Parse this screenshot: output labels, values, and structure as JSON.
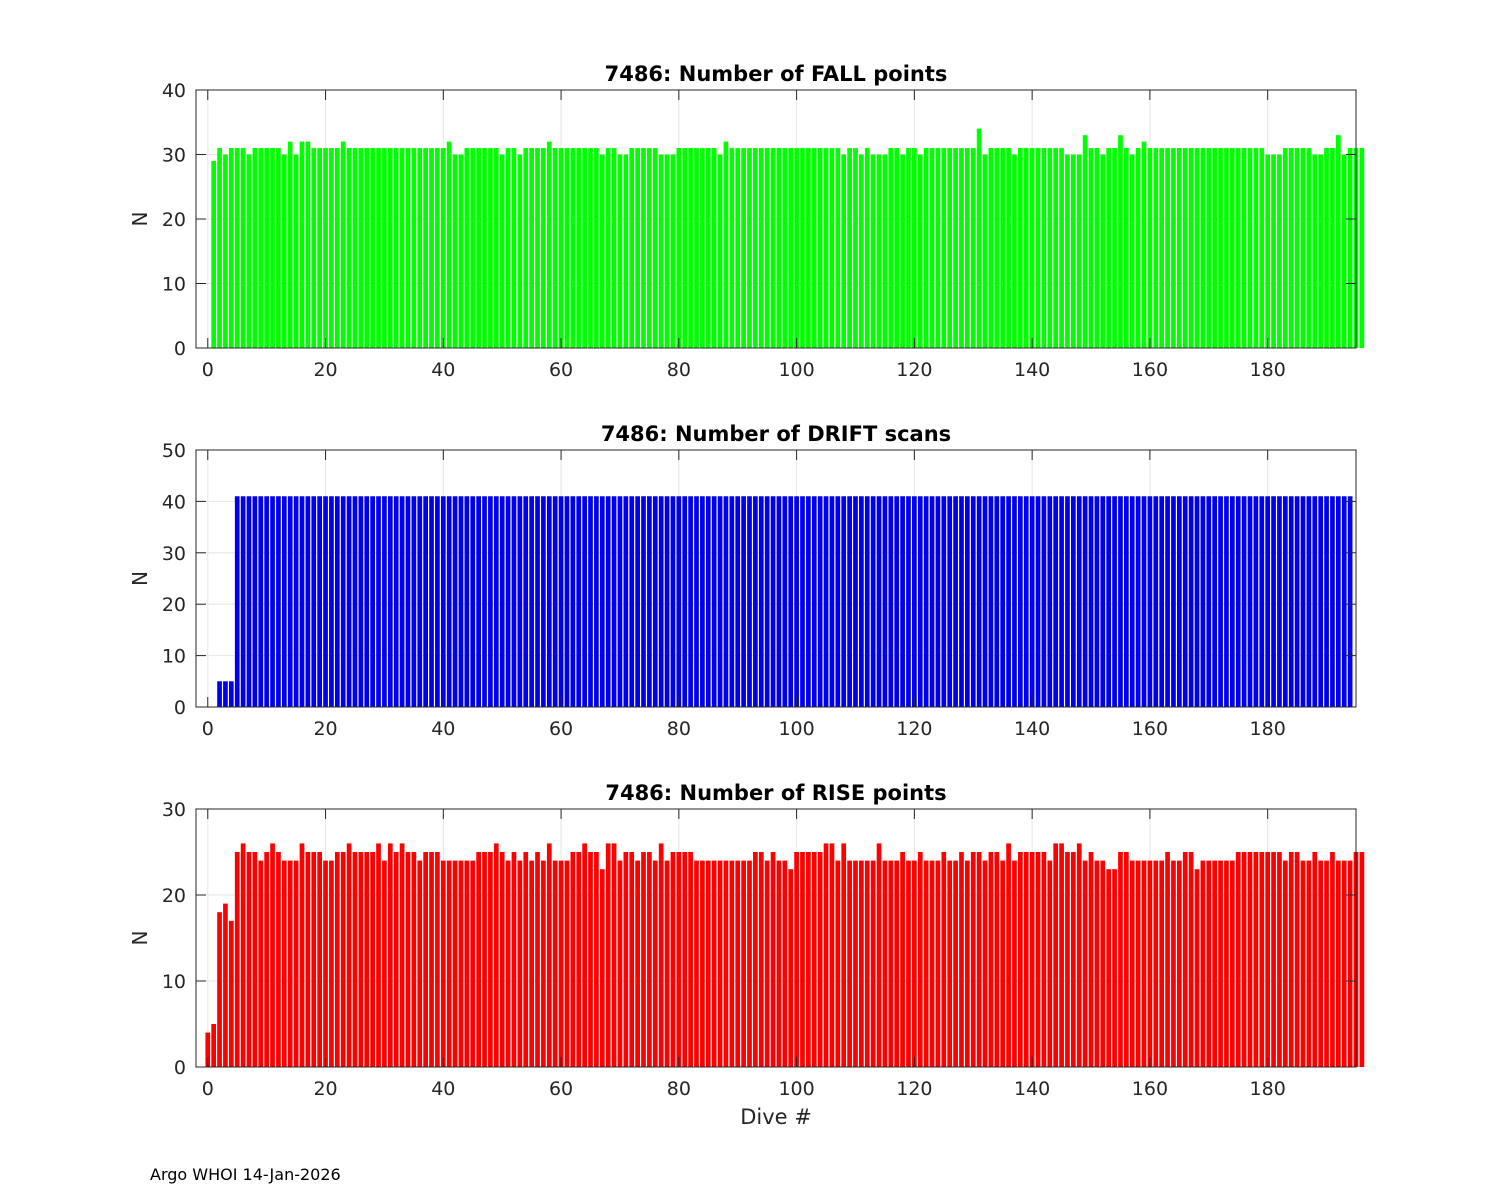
{
  "footer": "Argo WHOI 14-Jan-2026",
  "chart_data": [
    {
      "type": "bar",
      "title": "7486: Number of FALL points",
      "ylabel": "N",
      "xlabel": "",
      "xlim": [
        -2,
        195
      ],
      "ylim": [
        0,
        40
      ],
      "xticks": [
        0,
        20,
        40,
        60,
        80,
        100,
        120,
        140,
        160,
        180
      ],
      "yticks": [
        0,
        10,
        20,
        30,
        40
      ],
      "color": "#00ff00",
      "x_start": 1,
      "values": [
        29,
        31,
        30,
        31,
        31,
        31,
        30,
        31,
        31,
        31,
        31,
        31,
        30,
        32,
        30,
        32,
        32,
        31,
        31,
        31,
        31,
        31,
        32,
        31,
        31,
        31,
        31,
        31,
        31,
        31,
        31,
        31,
        31,
        31,
        31,
        31,
        31,
        31,
        31,
        31,
        32,
        30,
        30,
        31,
        31,
        31,
        31,
        31,
        31,
        30,
        31,
        31,
        30,
        31,
        31,
        31,
        31,
        32,
        31,
        31,
        31,
        31,
        31,
        31,
        31,
        31,
        30,
        31,
        31,
        30,
        30,
        31,
        31,
        31,
        31,
        31,
        30,
        30,
        30,
        31,
        31,
        31,
        31,
        31,
        31,
        31,
        30,
        32,
        31,
        31,
        31,
        31,
        31,
        31,
        31,
        31,
        31,
        31,
        31,
        31,
        31,
        31,
        31,
        31,
        31,
        31,
        31,
        30,
        31,
        31,
        30,
        31,
        30,
        30,
        30,
        31,
        31,
        30,
        31,
        31,
        30,
        31,
        31,
        31,
        31,
        31,
        31,
        31,
        31,
        31,
        34,
        30,
        31,
        31,
        31,
        31,
        30,
        31,
        31,
        31,
        31,
        31,
        31,
        31,
        31,
        30,
        30,
        30,
        33,
        31,
        31,
        30,
        31,
        31,
        33,
        31,
        30,
        31,
        32,
        31,
        31,
        31,
        31,
        31,
        31,
        31,
        31,
        31,
        31,
        31,
        31,
        31,
        31,
        31,
        31,
        31,
        31,
        31,
        31,
        30,
        30,
        30,
        31,
        31,
        31,
        31,
        31,
        30,
        30,
        31,
        31,
        33,
        30,
        31,
        31,
        31
      ]
    },
    {
      "type": "bar",
      "title": "7486: Number of DRIFT scans",
      "ylabel": "N",
      "xlabel": "",
      "xlim": [
        -2,
        195
      ],
      "ylim": [
        0,
        50
      ],
      "xticks": [
        0,
        20,
        40,
        60,
        80,
        100,
        120,
        140,
        160,
        180
      ],
      "yticks": [
        0,
        10,
        20,
        30,
        40,
        50
      ],
      "color": "#0000ee",
      "x_start": 2,
      "values": [
        5,
        5,
        5,
        41,
        41,
        41,
        41,
        41,
        41,
        41,
        41,
        41,
        41,
        41,
        41,
        41,
        41,
        41,
        41,
        41,
        41,
        41,
        41,
        41,
        41,
        41,
        41,
        41,
        41,
        41,
        41,
        41,
        41,
        41,
        41,
        41,
        41,
        41,
        41,
        41,
        41,
        41,
        41,
        41,
        41,
        41,
        41,
        41,
        41,
        41,
        41,
        41,
        41,
        41,
        41,
        41,
        41,
        41,
        41,
        41,
        41,
        41,
        41,
        41,
        41,
        41,
        41,
        41,
        41,
        41,
        41,
        41,
        41,
        41,
        41,
        41,
        41,
        41,
        41,
        41,
        41,
        41,
        41,
        41,
        41,
        41,
        41,
        41,
        41,
        41,
        41,
        41,
        41,
        41,
        41,
        41,
        41,
        41,
        41,
        41,
        41,
        41,
        41,
        41,
        41,
        41,
        41,
        41,
        41,
        41,
        41,
        41,
        41,
        41,
        41,
        41,
        41,
        41,
        41,
        41,
        41,
        41,
        41,
        41,
        41,
        41,
        41,
        41,
        41,
        41,
        41,
        41,
        41,
        41,
        41,
        41,
        41,
        41,
        41,
        41,
        41,
        41,
        41,
        41,
        41,
        41,
        41,
        41,
        41,
        41,
        41,
        41,
        41,
        41,
        41,
        41,
        41,
        41,
        41,
        41,
        41,
        41,
        41,
        41,
        41,
        41,
        41,
        41,
        41,
        41,
        41,
        41,
        41,
        41,
        41,
        41,
        41,
        41,
        41,
        41,
        41,
        41,
        41,
        41,
        41,
        41,
        41,
        41,
        41,
        41,
        41,
        41,
        41
      ]
    },
    {
      "type": "bar",
      "title": "7486: Number of RISE points",
      "ylabel": "N",
      "xlabel": "Dive #",
      "xlim": [
        -2,
        195
      ],
      "ylim": [
        0,
        30
      ],
      "xticks": [
        0,
        20,
        40,
        60,
        80,
        100,
        120,
        140,
        160,
        180
      ],
      "yticks": [
        0,
        10,
        20,
        30
      ],
      "color": "#ff0000",
      "x_start": 0,
      "values": [
        4,
        5,
        18,
        19,
        17,
        25,
        26,
        25,
        25,
        24,
        25,
        26,
        25,
        24,
        24,
        24,
        26,
        25,
        25,
        25,
        24,
        24,
        25,
        25,
        26,
        25,
        25,
        25,
        25,
        26,
        24,
        26,
        25,
        26,
        25,
        25,
        24,
        25,
        25,
        25,
        24,
        24,
        24,
        24,
        24,
        24,
        25,
        25,
        25,
        26,
        25,
        24,
        25,
        24,
        25,
        24,
        25,
        24,
        26,
        24,
        24,
        24,
        25,
        25,
        26,
        25,
        25,
        23,
        26,
        26,
        24,
        25,
        25,
        24,
        25,
        25,
        24,
        26,
        24,
        25,
        25,
        25,
        25,
        24,
        24,
        24,
        24,
        24,
        24,
        24,
        24,
        24,
        24,
        25,
        25,
        24,
        25,
        24,
        24,
        23,
        25,
        25,
        25,
        25,
        25,
        26,
        26,
        24,
        26,
        24,
        24,
        24,
        24,
        24,
        26,
        24,
        24,
        24,
        25,
        24,
        24,
        25,
        24,
        24,
        24,
        25,
        24,
        24,
        25,
        24,
        25,
        25,
        24,
        25,
        25,
        24,
        26,
        24,
        25,
        25,
        25,
        25,
        25,
        24,
        26,
        26,
        25,
        25,
        26,
        24,
        25,
        24,
        24,
        23,
        23,
        25,
        25,
        24,
        24,
        24,
        24,
        24,
        24,
        25,
        24,
        24,
        25,
        25,
        23,
        24,
        24,
        24,
        24,
        24,
        24,
        25,
        25,
        25,
        25,
        25,
        25,
        25,
        25,
        24,
        25,
        25,
        24,
        24,
        25,
        24,
        24,
        25,
        24,
        24,
        24,
        25,
        25
      ]
    }
  ]
}
